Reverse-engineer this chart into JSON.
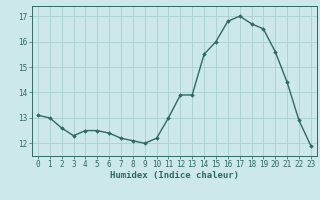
{
  "x": [
    0,
    1,
    2,
    3,
    4,
    5,
    6,
    7,
    8,
    9,
    10,
    11,
    12,
    13,
    14,
    15,
    16,
    17,
    18,
    19,
    20,
    21,
    22,
    23
  ],
  "y": [
    13.1,
    13.0,
    12.6,
    12.3,
    12.5,
    12.5,
    12.4,
    12.2,
    12.1,
    12.0,
    12.2,
    13.0,
    13.9,
    13.9,
    15.5,
    16.0,
    16.8,
    17.0,
    16.7,
    16.5,
    15.6,
    14.4,
    12.9,
    11.9
  ],
  "xlabel": "Humidex (Indice chaleur)",
  "ylim": [
    11.5,
    17.4
  ],
  "xlim": [
    -0.5,
    23.5
  ],
  "yticks": [
    12,
    13,
    14,
    15,
    16,
    17
  ],
  "xticks": [
    0,
    1,
    2,
    3,
    4,
    5,
    6,
    7,
    8,
    9,
    10,
    11,
    12,
    13,
    14,
    15,
    16,
    17,
    18,
    19,
    20,
    21,
    22,
    23
  ],
  "line_color": "#2e6b5e",
  "bg_color": "#cce8e8",
  "grid_color": "#aad0d0",
  "marker": "D",
  "marker_size": 1.8,
  "line_width": 1.0,
  "tick_fontsize": 5.5,
  "xlabel_fontsize": 6.5
}
